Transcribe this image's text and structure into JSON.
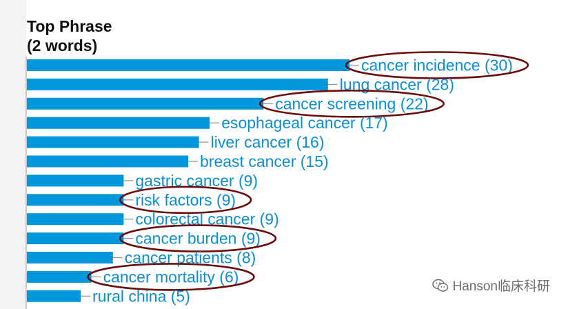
{
  "chart_data": {
    "type": "bar",
    "orientation": "horizontal",
    "title_line1": "Top Phrase",
    "title_line2": "(2 words)",
    "categories": [
      "cancer incidence",
      "lung cancer",
      "cancer screening",
      "esophageal cancer",
      "liver cancer",
      "breast cancer",
      "gastric cancer",
      "risk factors",
      "colorectal cancer",
      "cancer burden",
      "cancer patients",
      "cancer mortality",
      "rural china"
    ],
    "values": [
      30,
      28,
      22,
      17,
      16,
      15,
      9,
      9,
      9,
      9,
      8,
      6,
      5
    ],
    "labels": [
      "cancer incidence (30)",
      "lung cancer (28)",
      "cancer screening (22)",
      "esophageal cancer (17)",
      "liver cancer (16)",
      "breast cancer (15)",
      "gastric cancer (9)",
      "risk factors (9)",
      "colorectal cancer (9)",
      "cancer burden (9)",
      "cancer patients (8)",
      "cancer mortality (6)",
      "rural china (5)"
    ],
    "highlighted": [
      "cancer incidence",
      "cancer screening",
      "risk factors",
      "cancer burden",
      "cancer mortality"
    ],
    "bar_color": "#0096dc",
    "label_color": "#0a8fd4",
    "highlight_color": "#6e0b0b"
  },
  "watermark": {
    "icon": "wechat-icon",
    "text": "Hanson临床科研"
  }
}
